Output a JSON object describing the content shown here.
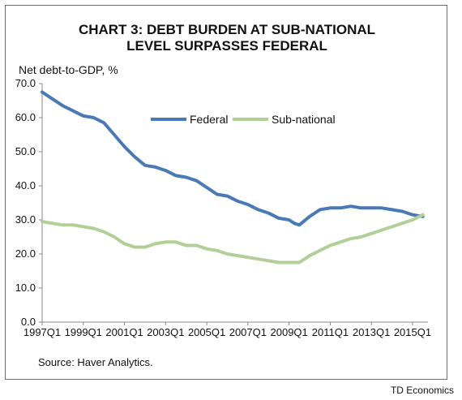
{
  "chart_data": {
    "type": "line",
    "title": [
      "CHART 3: DEBT BURDEN AT SUB-NATIONAL",
      "LEVEL SURPASSES FEDERAL"
    ],
    "ylabel": "Net debt-to-GDP, %",
    "ylim": [
      0,
      70
    ],
    "y_ticks": [
      "0.0",
      "10.0",
      "20.0",
      "30.0",
      "40.0",
      "50.0",
      "60.0",
      "70.0"
    ],
    "x_ticks": [
      "1997Q1",
      "1999Q1",
      "2001Q1",
      "2003Q1",
      "2005Q1",
      "2007Q1",
      "2009Q1",
      "2011Q1",
      "2013Q1",
      "2015Q1"
    ],
    "x_range": [
      1997.0,
      2015.75
    ],
    "legend_position": "top-center",
    "grid": false,
    "source": "Source: Haver Analytics.",
    "series": [
      {
        "name": "Federal",
        "color": "#4a7ab5",
        "x": [
          1997.0,
          1997.5,
          1998.0,
          1998.5,
          1999.0,
          1999.5,
          2000.0,
          2000.5,
          2001.0,
          2001.5,
          2002.0,
          2002.5,
          2003.0,
          2003.5,
          2004.0,
          2004.5,
          2005.0,
          2005.5,
          2006.0,
          2006.5,
          2007.0,
          2007.5,
          2008.0,
          2008.5,
          2009.0,
          2009.25,
          2009.5,
          2010.0,
          2010.5,
          2011.0,
          2011.5,
          2012.0,
          2012.5,
          2013.0,
          2013.5,
          2014.0,
          2014.5,
          2015.0,
          2015.5
        ],
        "values": [
          67.5,
          65.5,
          63.5,
          62.0,
          60.5,
          60.0,
          58.5,
          55.0,
          51.5,
          48.5,
          46.0,
          45.5,
          44.5,
          43.0,
          42.5,
          41.5,
          39.5,
          37.5,
          37.0,
          35.5,
          34.5,
          33.0,
          32.0,
          30.5,
          30.0,
          29.0,
          28.5,
          31.0,
          33.0,
          33.5,
          33.5,
          34.0,
          33.5,
          33.5,
          33.5,
          33.0,
          32.5,
          31.5,
          31.0
        ]
      },
      {
        "name": "Sub-national",
        "color": "#b3cf98",
        "x": [
          1997.0,
          1997.5,
          1998.0,
          1998.5,
          1999.0,
          1999.5,
          2000.0,
          2000.5,
          2001.0,
          2001.5,
          2002.0,
          2002.5,
          2003.0,
          2003.5,
          2004.0,
          2004.5,
          2005.0,
          2005.5,
          2006.0,
          2006.5,
          2007.0,
          2007.5,
          2008.0,
          2008.5,
          2009.0,
          2009.5,
          2010.0,
          2010.5,
          2011.0,
          2011.5,
          2012.0,
          2012.5,
          2013.0,
          2013.5,
          2014.0,
          2014.5,
          2015.0,
          2015.5
        ],
        "values": [
          29.5,
          29.0,
          28.5,
          28.5,
          28.0,
          27.5,
          26.5,
          25.0,
          23.0,
          22.0,
          22.0,
          23.0,
          23.5,
          23.5,
          22.5,
          22.5,
          21.5,
          21.0,
          20.0,
          19.5,
          19.0,
          18.5,
          18.0,
          17.5,
          17.5,
          17.5,
          19.5,
          21.0,
          22.5,
          23.5,
          24.5,
          25.0,
          26.0,
          27.0,
          28.0,
          29.0,
          30.0,
          31.5
        ]
      }
    ]
  },
  "footer": {
    "credit": "TD Economics"
  }
}
